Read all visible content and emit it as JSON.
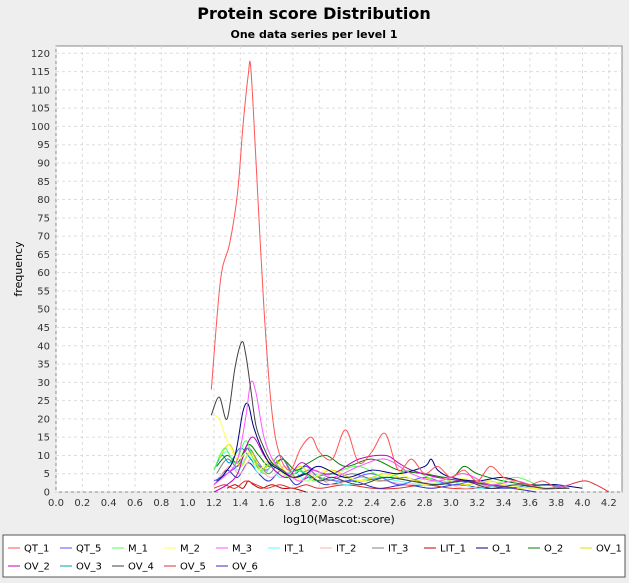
{
  "chart_data": {
    "type": "line",
    "title": "Protein score Distribution",
    "subtitle": "One data series per level 1",
    "xlabel": "log10(Mascot:score)",
    "ylabel": "frequency",
    "xlim": [
      0,
      4.3
    ],
    "ylim": [
      0,
      122
    ],
    "xticks": [
      "0.0",
      "0.2",
      "0.4",
      "0.6",
      "0.8",
      "1.0",
      "1.2",
      "1.4",
      "1.6",
      "1.8",
      "2.0",
      "2.2",
      "2.4",
      "2.6",
      "2.8",
      "3.0",
      "3.2",
      "3.4",
      "3.6",
      "3.8",
      "4.0",
      "4.2"
    ],
    "yticks": [
      "0",
      "5",
      "10",
      "15",
      "20",
      "25",
      "30",
      "35",
      "40",
      "45",
      "50",
      "55",
      "60",
      "65",
      "70",
      "75",
      "80",
      "85",
      "90",
      "95",
      "100",
      "105",
      "110",
      "115",
      "120"
    ],
    "grid": true,
    "legend_position": "bottom",
    "series": [
      {
        "name": "QT_1",
        "color": "#ff5555",
        "x": [
          1.18,
          1.25,
          1.32,
          1.38,
          1.42,
          1.46,
          1.48,
          1.52,
          1.58,
          1.64,
          1.7,
          1.78,
          1.86,
          1.94,
          2.0,
          2.1,
          2.2,
          2.3,
          2.4,
          2.5,
          2.6,
          2.7,
          2.8,
          2.9,
          3.0,
          3.1,
          3.2,
          3.3,
          3.4,
          3.5,
          3.6,
          3.7,
          3.8
        ],
        "values": [
          28,
          58,
          68,
          82,
          100,
          114,
          116,
          90,
          50,
          22,
          10,
          6,
          12,
          15,
          11,
          9,
          17,
          8,
          11,
          16,
          6,
          9,
          5,
          7,
          4,
          6,
          3,
          7,
          4,
          3,
          2,
          3,
          1
        ]
      },
      {
        "name": "QT_5",
        "color": "#5555ff",
        "x": [
          1.2,
          1.3,
          1.4,
          1.45,
          1.5,
          1.6,
          1.7,
          1.8,
          1.9,
          2.0,
          2.2,
          2.4,
          2.6,
          2.8,
          3.0,
          3.2,
          3.4,
          3.6
        ],
        "values": [
          3,
          5,
          8,
          12,
          9,
          6,
          10,
          5,
          7,
          4,
          3,
          5,
          2,
          4,
          2,
          3,
          1,
          2
        ]
      },
      {
        "name": "M_1",
        "color": "#55ff55",
        "x": [
          1.2,
          1.28,
          1.36,
          1.44,
          1.5,
          1.58,
          1.66,
          1.76,
          1.86,
          1.96,
          2.1,
          2.3,
          2.5,
          2.7,
          2.9,
          3.1,
          3.3,
          3.5,
          3.7
        ],
        "values": [
          6,
          12,
          8,
          14,
          9,
          5,
          8,
          4,
          6,
          3,
          5,
          7,
          4,
          6,
          3,
          5,
          2,
          4,
          1
        ]
      },
      {
        "name": "M_2",
        "color": "#ffff55",
        "x": [
          1.18,
          1.24,
          1.3,
          1.38,
          1.46,
          1.54,
          1.62,
          1.72,
          1.82,
          1.92,
          2.05,
          2.2,
          2.4,
          2.6,
          2.8,
          3.0,
          3.2,
          3.4,
          3.6,
          3.8
        ],
        "values": [
          21,
          20,
          14,
          9,
          11,
          6,
          9,
          5,
          4,
          3,
          6,
          4,
          3,
          5,
          2,
          4,
          3,
          2,
          1,
          1
        ]
      },
      {
        "name": "M_3",
        "color": "#ff55ff",
        "x": [
          1.2,
          1.3,
          1.38,
          1.44,
          1.48,
          1.52,
          1.58,
          1.66,
          1.76,
          1.86,
          1.96,
          2.1,
          2.3,
          2.5,
          2.7,
          2.9,
          3.1,
          3.3,
          3.5,
          3.7,
          3.9
        ],
        "values": [
          2,
          5,
          9,
          20,
          30,
          27,
          15,
          8,
          5,
          3,
          6,
          4,
          7,
          9,
          5,
          3,
          5,
          2,
          3,
          1,
          2
        ]
      },
      {
        "name": "IT_1",
        "color": "#55ffff",
        "x": [
          1.22,
          1.3,
          1.38,
          1.46,
          1.54,
          1.62,
          1.7,
          1.8,
          1.9,
          2.0,
          2.2,
          2.4,
          2.6,
          2.8,
          3.0,
          3.2,
          3.4,
          3.6
        ],
        "values": [
          8,
          11,
          6,
          10,
          5,
          8,
          4,
          6,
          3,
          5,
          2,
          4,
          3,
          2,
          3,
          1,
          2,
          1
        ]
      },
      {
        "name": "IT_2",
        "color": "#ffafaf",
        "x": [
          1.24,
          1.32,
          1.4,
          1.48,
          1.56,
          1.64,
          1.74,
          1.84,
          1.94,
          2.1,
          2.3,
          2.5,
          2.7,
          2.9,
          3.1,
          3.3,
          3.5
        ],
        "values": [
          4,
          7,
          5,
          9,
          6,
          4,
          7,
          3,
          5,
          2,
          4,
          3,
          2,
          3,
          1,
          2,
          1
        ]
      },
      {
        "name": "IT_3",
        "color": "#808080",
        "x": [
          1.22,
          1.3,
          1.38,
          1.46,
          1.54,
          1.62,
          1.72,
          1.82,
          1.92,
          2.05,
          2.25,
          2.45,
          2.65,
          2.85,
          3.05,
          3.25,
          3.45
        ],
        "values": [
          5,
          9,
          7,
          12,
          8,
          5,
          9,
          4,
          6,
          3,
          5,
          3,
          4,
          2,
          3,
          2,
          1
        ]
      },
      {
        "name": "LIT_1",
        "color": "#c00000",
        "x": [
          1.3,
          1.36,
          1.42,
          1.46,
          1.5,
          1.56,
          1.64,
          1.72,
          1.8,
          1.9
        ],
        "values": [
          1,
          2,
          1,
          3,
          2,
          1,
          2,
          1,
          1,
          0
        ]
      },
      {
        "name": "O_1",
        "color": "#000080",
        "x": [
          1.2,
          1.28,
          1.36,
          1.42,
          1.46,
          1.5,
          1.56,
          1.62,
          1.7,
          1.8,
          1.9,
          2.0,
          2.2,
          2.4,
          2.6,
          2.8,
          2.85,
          2.9,
          3.0,
          3.2,
          3.4,
          3.6,
          3.8,
          4.0
        ],
        "values": [
          2,
          5,
          10,
          22,
          24,
          18,
          12,
          8,
          6,
          4,
          5,
          7,
          4,
          6,
          5,
          7,
          9,
          6,
          4,
          3,
          4,
          2,
          2,
          1
        ]
      },
      {
        "name": "O_2",
        "color": "#008000",
        "x": [
          1.22,
          1.3,
          1.38,
          1.46,
          1.54,
          1.62,
          1.72,
          1.82,
          1.92,
          2.05,
          2.2,
          2.4,
          2.6,
          2.8,
          3.0,
          3.1,
          3.2,
          3.4,
          3.6,
          3.8
        ],
        "values": [
          7,
          10,
          8,
          13,
          10,
          7,
          9,
          6,
          8,
          10,
          7,
          9,
          6,
          5,
          4,
          7,
          5,
          3,
          2,
          2
        ]
      },
      {
        "name": "OV_1",
        "color": "#e0e000",
        "x": [
          1.24,
          1.32,
          1.4,
          1.48,
          1.56,
          1.66,
          1.76,
          1.86,
          1.96,
          2.1,
          2.3,
          2.5,
          2.7,
          2.9,
          3.1,
          3.3,
          3.5,
          3.7
        ],
        "values": [
          9,
          13,
          7,
          11,
          6,
          9,
          5,
          7,
          4,
          6,
          3,
          5,
          3,
          4,
          2,
          3,
          1,
          2
        ]
      },
      {
        "name": "OV_2",
        "color": "#c000c0",
        "x": [
          1.2,
          1.3,
          1.38,
          1.44,
          1.5,
          1.58,
          1.66,
          1.76,
          1.86,
          1.96,
          2.1,
          2.3,
          2.5,
          2.6,
          2.7,
          2.9,
          3.1,
          3.3,
          3.5
        ],
        "values": [
          0,
          2,
          5,
          12,
          15,
          10,
          6,
          4,
          8,
          6,
          5,
          9,
          10,
          8,
          6,
          4,
          3,
          2,
          1
        ]
      },
      {
        "name": "OV_3",
        "color": "#00a0c0",
        "x": [
          1.2,
          1.26,
          1.32,
          1.4,
          1.48,
          1.56,
          1.64,
          1.74,
          1.84,
          1.94,
          2.1,
          2.3,
          2.5,
          2.7,
          2.9,
          3.1,
          3.3,
          3.5,
          3.7,
          3.9
        ],
        "values": [
          6,
          10,
          8,
          12,
          9,
          6,
          8,
          5,
          6,
          4,
          5,
          3,
          4,
          3,
          2,
          3,
          2,
          1,
          2,
          1
        ]
      },
      {
        "name": "OV_4",
        "color": "#404040",
        "x": [
          1.18,
          1.24,
          1.3,
          1.36,
          1.41,
          1.44,
          1.48,
          1.52,
          1.58,
          1.64,
          1.72,
          1.8,
          1.9,
          2.0,
          2.1,
          2.3,
          2.5,
          2.7,
          2.9,
          3.1,
          3.3,
          3.5,
          3.7,
          3.9
        ],
        "values": [
          21,
          26,
          20,
          34,
          41,
          38,
          28,
          18,
          12,
          8,
          6,
          4,
          5,
          3,
          4,
          2,
          4,
          3,
          2,
          3,
          1,
          2,
          1,
          1
        ]
      },
      {
        "name": "OV_5",
        "color": "#e03030",
        "x": [
          1.2,
          1.28,
          1.36,
          1.44,
          1.52,
          1.6,
          1.7,
          1.8,
          1.9,
          2.0,
          2.2,
          2.4,
          2.6,
          2.8,
          3.0,
          3.2,
          3.4,
          3.6,
          3.8,
          4.0,
          4.1,
          4.2
        ],
        "values": [
          1,
          2,
          1,
          3,
          2,
          1,
          2,
          1,
          2,
          1,
          2,
          1,
          1,
          2,
          1,
          1,
          2,
          1,
          1,
          3,
          2,
          0
        ]
      },
      {
        "name": "OV_6",
        "color": "#3030c0",
        "x": [
          1.22,
          1.3,
          1.38,
          1.46,
          1.54,
          1.62,
          1.72,
          1.82,
          1.92,
          2.05,
          2.25,
          2.45,
          2.65,
          2.85,
          3.05,
          3.25,
          3.45,
          3.65
        ],
        "values": [
          3,
          6,
          4,
          8,
          5,
          3,
          6,
          2,
          4,
          2,
          3,
          1,
          2,
          1,
          2,
          1,
          1,
          0
        ]
      }
    ]
  }
}
